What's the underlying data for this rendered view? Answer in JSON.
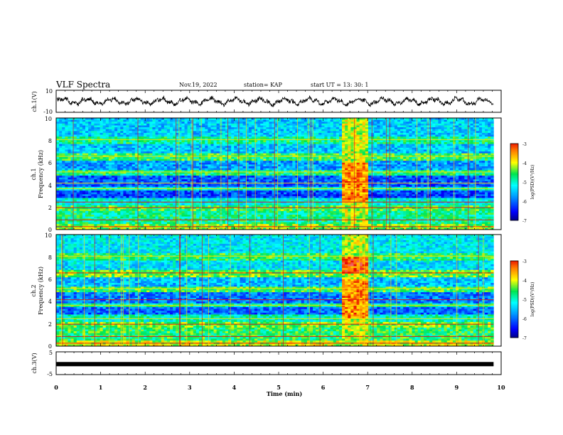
{
  "header": {
    "title": "VLF Spectra",
    "date": "Nov.19, 2022",
    "station": "station= KAP",
    "start": "start  UT  =   13: 30: 1"
  },
  "chart_data": [
    {
      "type": "line",
      "name": "ch1-waveform",
      "ylabel": "ch.1(V)",
      "ylim": [
        -10,
        10
      ],
      "y_ticks": [
        "10",
        "-10"
      ],
      "x_range": [
        0,
        10
      ],
      "x_end_data": 9.83
    },
    {
      "type": "heatmap",
      "name": "ch1-spectrogram",
      "ylabel": "ch.1\nFrequency (kHz)",
      "ylim": [
        0,
        10
      ],
      "y_ticks": [
        "0",
        "2",
        "4",
        "6",
        "8",
        "10"
      ],
      "x_range": [
        0,
        10
      ],
      "x_end_data": 9.83,
      "colorbar": {
        "label": "log(PSD)(V²/Hz)",
        "range": [
          -7,
          -3
        ],
        "ticks": [
          "-3",
          "-4",
          "-5",
          "-6",
          "-7"
        ]
      }
    },
    {
      "type": "heatmap",
      "name": "ch2-spectrogram",
      "ylabel": "ch.2\nFrequency (kHz)",
      "ylim": [
        0,
        10
      ],
      "y_ticks": [
        "0",
        "2",
        "4",
        "6",
        "8",
        "10"
      ],
      "x_range": [
        0,
        10
      ],
      "x_end_data": 9.83,
      "colorbar": {
        "label": "log(PSD)(V²/Hz)",
        "range": [
          -7,
          -3
        ],
        "ticks": [
          "-3",
          "-4",
          "-5",
          "-6",
          "-7"
        ]
      }
    },
    {
      "type": "line",
      "name": "ch3-signal",
      "ylabel": "ch.3(V)",
      "ylim": [
        -5,
        5
      ],
      "y_ticks": [
        "5",
        "-5"
      ],
      "x": [
        0,
        9.83
      ],
      "y": [
        -0.4,
        -0.4
      ],
      "x_range": [
        0,
        10
      ],
      "xlabel": "Time (min)",
      "x_ticks": [
        "0",
        "1",
        "2",
        "3",
        "4",
        "5",
        "6",
        "7",
        "8",
        "9",
        "10"
      ]
    }
  ]
}
